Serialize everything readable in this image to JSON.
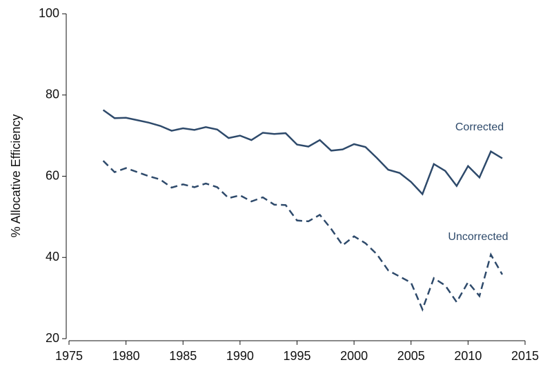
{
  "chart_data": {
    "type": "line",
    "y_label": "% Allocative Efficiency",
    "x": [
      1978,
      1979,
      1980,
      1981,
      1982,
      1983,
      1984,
      1985,
      1986,
      1987,
      1988,
      1989,
      1990,
      1991,
      1992,
      1993,
      1994,
      1995,
      1996,
      1997,
      1998,
      1999,
      2000,
      2001,
      2002,
      2003,
      2004,
      2005,
      2006,
      2007,
      2008,
      2009,
      2010,
      2011,
      2012,
      2013
    ],
    "series": [
      {
        "name": "Corrected",
        "color": "#2e4a6b",
        "dash": "solid",
        "values": [
          76.3,
          74.3,
          74.4,
          73.8,
          73.2,
          72.4,
          71.2,
          71.8,
          71.4,
          72.1,
          71.5,
          69.4,
          70.0,
          68.9,
          70.7,
          70.4,
          70.6,
          67.8,
          67.3,
          68.9,
          66.3,
          66.6,
          67.9,
          67.2,
          64.5,
          61.6,
          60.8,
          58.6,
          55.6,
          63.0,
          61.3,
          57.6,
          62.5,
          59.7,
          66.1,
          64.4
        ]
      },
      {
        "name": "Uncorrected",
        "color": "#2e4a6b",
        "dash": "dashed",
        "values": [
          63.8,
          61.0,
          62.0,
          61.0,
          60.0,
          59.2,
          57.2,
          58.0,
          57.3,
          58.2,
          57.3,
          54.6,
          55.3,
          53.8,
          54.8,
          53.0,
          52.9,
          49.1,
          48.9,
          50.5,
          47.0,
          43.0,
          45.2,
          43.5,
          40.8,
          36.8,
          35.3,
          33.8,
          27.2,
          34.9,
          33.1,
          29.0,
          33.9,
          30.5,
          40.7,
          35.8
        ]
      }
    ],
    "xlim": [
      1975,
      2015
    ],
    "xticks": [
      1975,
      1980,
      1985,
      1990,
      1995,
      2000,
      2005,
      2010,
      2015
    ],
    "ylim": [
      20,
      100
    ],
    "yticks": [
      20,
      40,
      60,
      80,
      100
    ]
  }
}
